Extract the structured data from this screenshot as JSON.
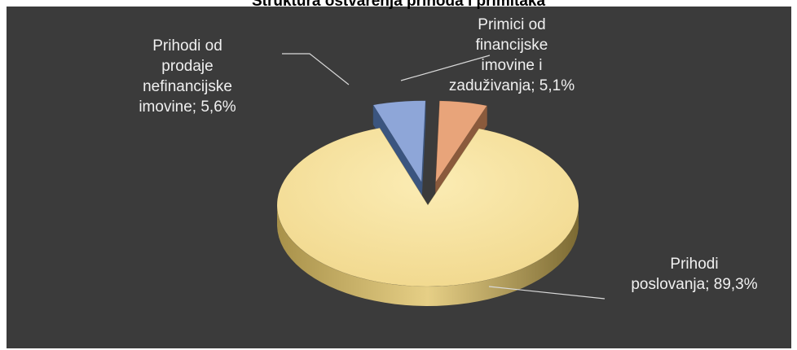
{
  "chart_data": {
    "type": "pie",
    "title": "Struktura ostvarenja prihoda i primitaka",
    "slices": [
      {
        "name": "Prihodi poslovanja",
        "value": 89.3,
        "label_lines": [
          "Prihodi",
          "poslovanja; 89,3%"
        ],
        "color": "#f7e09a",
        "side_color": "#b7a056"
      },
      {
        "name": "Prihodi od prodaje nefinancijske imovine",
        "value": 5.6,
        "label_lines": [
          "Prihodi od",
          "prodaje",
          "nefinancijske",
          "imovine; 5,6%"
        ],
        "color": "#8ea6d8",
        "side_color": "#3b557f"
      },
      {
        "name": "Primici od financijske imovine i zaduživanja",
        "value": 5.1,
        "label_lines": [
          "Primici od",
          "financijske",
          "imovine i",
          "zaduživanja; 5,1%"
        ],
        "color": "#e8a47a",
        "side_color": "#8a5a3c"
      }
    ],
    "legend": "none",
    "style": "3d-exploded"
  }
}
